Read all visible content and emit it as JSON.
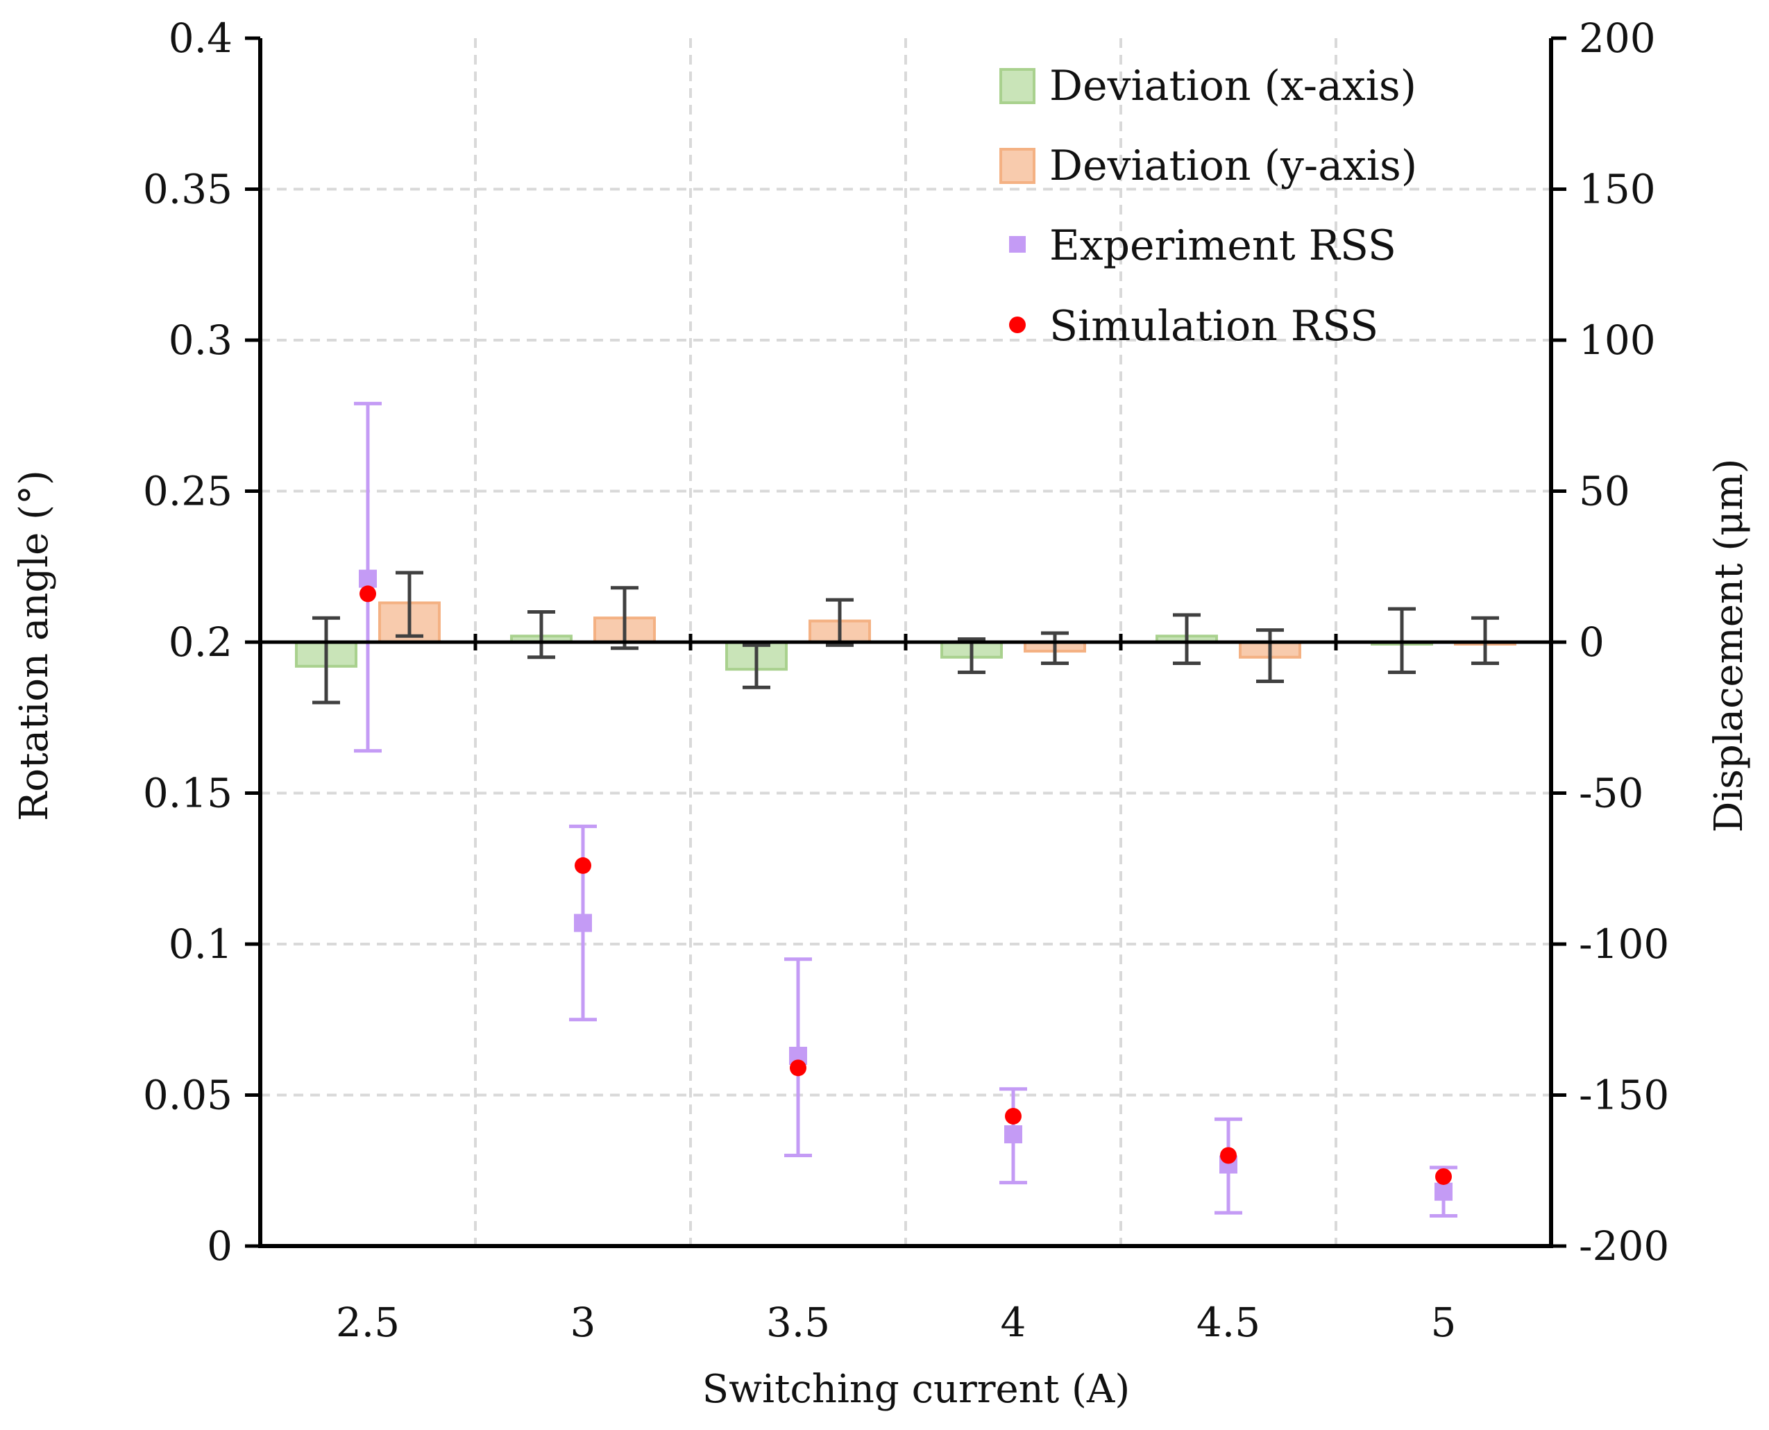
{
  "chart_data": {
    "type": "bar",
    "xlabel": "Switching current (A)",
    "ylabel_left": "Rotation angle (°)",
    "ylabel_right": "Displacement (μm)",
    "categories": [
      "2.5",
      "3",
      "3.5",
      "4",
      "4.5",
      "5"
    ],
    "ylim_left": [
      0,
      0.4
    ],
    "ylim_right": [
      -200,
      200
    ],
    "yticks_left": [
      "0",
      "0.05",
      "0.1",
      "0.15",
      "0.2",
      "0.25",
      "0.3",
      "0.35",
      "0.4"
    ],
    "yticks_right": [
      "-200",
      "-150",
      "-100",
      "-50",
      "0",
      "50",
      "100",
      "150",
      "200"
    ],
    "grid": true,
    "legend_position": "top-right",
    "bar_series": [
      {
        "name": "Deviation (x-axis)",
        "axis": "right",
        "color": "#a9d18e",
        "fill": "#c9e4b8",
        "values": [
          -8,
          2,
          -9,
          -5,
          2,
          0
        ],
        "err_low": [
          -20,
          -5,
          -15,
          -10,
          -7,
          -10
        ],
        "err_high": [
          8,
          10,
          -1,
          1,
          9,
          11
        ]
      },
      {
        "name": "Deviation (y-axis)",
        "axis": "right",
        "color": "#f4b183",
        "fill": "#f8cbad",
        "values": [
          13,
          8,
          7,
          -3,
          -5,
          0
        ],
        "err_low": [
          2,
          -2,
          -1,
          -7,
          -13,
          -7
        ],
        "err_high": [
          23,
          18,
          14,
          3,
          4,
          8
        ]
      }
    ],
    "point_series": [
      {
        "name": "Experiment RSS",
        "axis": "left",
        "marker": "square",
        "color": "#c49bf5",
        "values": [
          0.221,
          0.107,
          0.063,
          0.037,
          0.027,
          0.018
        ],
        "err_low": [
          0.164,
          0.075,
          0.03,
          0.021,
          0.011,
          0.01
        ],
        "err_high": [
          0.279,
          0.139,
          0.095,
          0.052,
          0.042,
          0.026
        ]
      },
      {
        "name": "Simulation RSS",
        "axis": "left",
        "marker": "circle",
        "color": "#ff0000",
        "values": [
          0.216,
          0.126,
          0.059,
          0.043,
          0.03,
          0.023
        ]
      }
    ],
    "colors": {
      "error_bar_dark": "#404040",
      "grid": "#d9d9d9"
    }
  }
}
